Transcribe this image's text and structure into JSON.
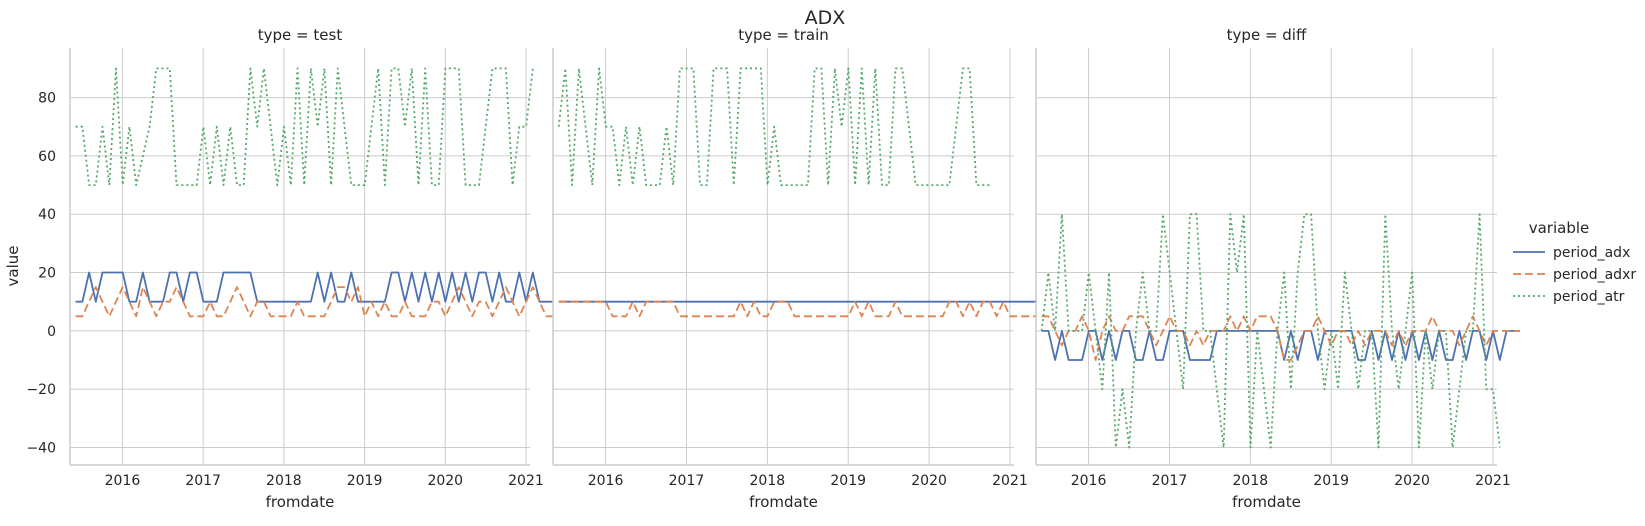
{
  "chart_data": {
    "type": "line",
    "title": "ADX",
    "ylabel": "value",
    "xlabel": "fromdate",
    "ylim": [
      -46,
      97
    ],
    "xlim": [
      2015.35,
      2021.05
    ],
    "x_ticks": [
      2016,
      2017,
      2018,
      2019,
      2020,
      2021
    ],
    "x_tick_labels": [
      "2016",
      "2017",
      "2018",
      "2019",
      "2020",
      "2021"
    ],
    "y_ticks": [
      -40,
      -20,
      0,
      20,
      40,
      60,
      80
    ],
    "y_tick_labels": [
      "−40",
      "−20",
      "0",
      "20",
      "40",
      "60",
      "80"
    ],
    "grid": true,
    "legend": {
      "title": "variable",
      "placement": "right"
    },
    "series_styles": [
      {
        "name": "period_adx",
        "color": "#4c72b0",
        "dash": "solid"
      },
      {
        "name": "period_adxr",
        "color": "#dd8452",
        "dash": "dashed"
      },
      {
        "name": "period_atr",
        "color": "#55a868",
        "dash": "dotted"
      }
    ],
    "x_start": 2015.42,
    "x_step": 0.0833,
    "panels": [
      {
        "title": "type = test",
        "series": [
          {
            "name": "period_adx",
            "values": [
              10,
              10,
              20,
              10,
              20,
              20,
              20,
              20,
              10,
              10,
              20,
              10,
              10,
              10,
              20,
              20,
              10,
              20,
              20,
              10,
              10,
              10,
              20,
              20,
              20,
              20,
              20,
              10,
              10,
              10,
              10,
              10,
              10,
              10,
              10,
              10,
              20,
              10,
              20,
              10,
              10,
              20,
              10,
              10,
              10,
              10,
              10,
              20,
              20,
              10,
              20,
              10,
              20,
              10,
              20,
              10,
              20,
              10,
              20,
              10,
              20,
              20,
              10,
              20,
              10,
              10,
              20,
              10,
              20,
              10,
              10,
              10
            ]
          },
          {
            "name": "period_adxr",
            "values": [
              5,
              5,
              10,
              15,
              10,
              5,
              10,
              15,
              10,
              5,
              15,
              10,
              5,
              10,
              10,
              15,
              10,
              5,
              5,
              5,
              10,
              5,
              5,
              10,
              15,
              10,
              5,
              10,
              10,
              5,
              5,
              5,
              5,
              10,
              5,
              5,
              5,
              5,
              10,
              15,
              15,
              10,
              15,
              5,
              10,
              5,
              10,
              5,
              5,
              10,
              5,
              5,
              5,
              10,
              10,
              5,
              10,
              15,
              10,
              5,
              10,
              10,
              5,
              10,
              15,
              10,
              5,
              10,
              15,
              10,
              5,
              5
            ]
          },
          {
            "name": "period_atr",
            "values": [
              70,
              70,
              50,
              50,
              70,
              50,
              90,
              50,
              70,
              50,
              60,
              70,
              90,
              90,
              90,
              50,
              50,
              50,
              50,
              70,
              50,
              70,
              50,
              70,
              50,
              50,
              90,
              70,
              90,
              70,
              50,
              70,
              50,
              90,
              50,
              90,
              70,
              90,
              50,
              90,
              70,
              50,
              50,
              50,
              70,
              90,
              50,
              90,
              90,
              70,
              90,
              50,
              90,
              50,
              50,
              90,
              90,
              90,
              50,
              50,
              50,
              70,
              90,
              90,
              90,
              50,
              70,
              70,
              90
            ]
          }
        ]
      },
      {
        "title": "type = train",
        "series": [
          {
            "name": "period_adx",
            "values": [
              10,
              10,
              10,
              10,
              10,
              10,
              10,
              10,
              10,
              10,
              10,
              10,
              10,
              10,
              10,
              10,
              10,
              10,
              10,
              10,
              10,
              10,
              10,
              10,
              10,
              10,
              10,
              10,
              10,
              10,
              10,
              10,
              10,
              10,
              10,
              10,
              10,
              10,
              10,
              10,
              10,
              10,
              10,
              10,
              10,
              10,
              10,
              10,
              10,
              10,
              10,
              10,
              10,
              10,
              10,
              10,
              10,
              10,
              10,
              10,
              10,
              10,
              10,
              10,
              10,
              10,
              10,
              10,
              10,
              10,
              10,
              10
            ]
          },
          {
            "name": "period_adxr",
            "values": [
              10,
              10,
              10,
              10,
              10,
              10,
              10,
              10,
              5,
              5,
              5,
              10,
              5,
              10,
              10,
              10,
              10,
              10,
              5,
              5,
              5,
              5,
              5,
              5,
              5,
              5,
              5,
              10,
              5,
              10,
              5,
              5,
              10,
              10,
              10,
              5,
              5,
              5,
              5,
              5,
              5,
              5,
              5,
              5,
              10,
              5,
              10,
              5,
              5,
              5,
              10,
              5,
              5,
              5,
              5,
              5,
              5,
              5,
              10,
              10,
              5,
              10,
              5,
              10,
              10,
              5,
              10,
              5,
              5,
              5,
              5,
              5
            ]
          },
          {
            "name": "period_atr",
            "values": [
              70,
              90,
              50,
              90,
              70,
              50,
              90,
              70,
              70,
              50,
              70,
              50,
              70,
              50,
              50,
              50,
              70,
              50,
              90,
              90,
              90,
              50,
              50,
              90,
              90,
              90,
              50,
              90,
              90,
              90,
              90,
              50,
              70,
              50,
              50,
              50,
              50,
              50,
              90,
              90,
              50,
              90,
              70,
              90,
              50,
              90,
              50,
              90,
              50,
              50,
              90,
              90,
              70,
              50,
              50,
              50,
              50,
              50,
              50,
              70,
              90,
              90,
              50,
              50,
              50
            ]
          }
        ]
      },
      {
        "title": "type = diff",
        "series": [
          {
            "name": "period_adx",
            "values": [
              0,
              0,
              -10,
              0,
              -10,
              -10,
              -10,
              0,
              0,
              -10,
              0,
              -10,
              0,
              0,
              -10,
              -10,
              0,
              -10,
              -10,
              0,
              0,
              0,
              -10,
              -10,
              -10,
              -10,
              0,
              0,
              0,
              0,
              0,
              0,
              0,
              0,
              0,
              0,
              -10,
              0,
              -10,
              0,
              0,
              -10,
              0,
              0,
              0,
              0,
              0,
              -10,
              -10,
              0,
              -10,
              0,
              -10,
              0,
              -10,
              0,
              -10,
              0,
              -10,
              0,
              -10,
              -10,
              0,
              -10,
              0,
              0,
              -10,
              0,
              -10,
              0,
              0,
              0
            ]
          },
          {
            "name": "period_adxr",
            "values": [
              5,
              5,
              0,
              -5,
              0,
              0,
              5,
              0,
              -10,
              0,
              5,
              0,
              0,
              5,
              5,
              5,
              0,
              -5,
              0,
              5,
              0,
              0,
              -5,
              0,
              -5,
              0,
              0,
              0,
              5,
              0,
              5,
              0,
              5,
              5,
              5,
              0,
              -10,
              -10,
              -5,
              0,
              0,
              5,
              0,
              -5,
              0,
              0,
              -5,
              0,
              -5,
              0,
              0,
              0,
              -5,
              0,
              -5,
              0,
              0,
              0,
              5,
              0,
              0,
              0,
              -5,
              0,
              5,
              0,
              -5,
              0,
              0,
              0,
              0,
              0
            ]
          },
          {
            "name": "period_atr",
            "values": [
              0,
              20,
              0,
              40,
              0,
              0,
              0,
              20,
              0,
              -20,
              20,
              -40,
              -20,
              -40,
              0,
              20,
              0,
              0,
              40,
              20,
              0,
              -20,
              40,
              40,
              0,
              0,
              -20,
              -40,
              40,
              20,
              40,
              -40,
              0,
              -20,
              -40,
              0,
              20,
              -20,
              20,
              40,
              40,
              0,
              -20,
              0,
              -20,
              20,
              0,
              -20,
              0,
              0,
              -40,
              40,
              0,
              -20,
              0,
              20,
              -40,
              0,
              -20,
              0,
              0,
              -40,
              -20,
              0,
              0,
              40,
              -20,
              -20,
              -40
            ]
          }
        ]
      }
    ]
  }
}
